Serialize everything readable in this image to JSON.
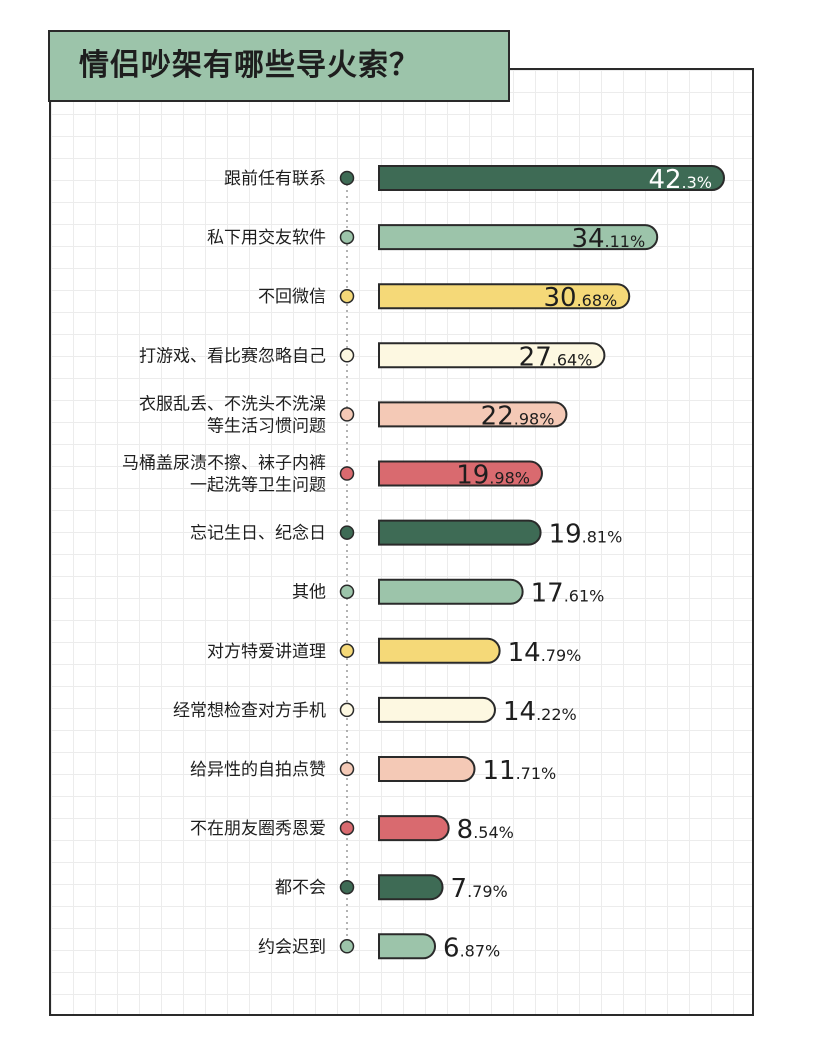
{
  "title": "情侣吵架有哪些导火索？",
  "palette": [
    "#3e6b55",
    "#9cc4aa",
    "#f5d978",
    "#fdf8e1",
    "#f4c9b6",
    "#d96a6f"
  ],
  "chart_data": {
    "type": "bar",
    "orientation": "horizontal",
    "title": "情侣吵架有哪些导火索？",
    "xlim": [
      0,
      42.3
    ],
    "grid": true,
    "categories": [
      [
        "跟前任有联系"
      ],
      [
        "私下用交友软件"
      ],
      [
        "不回微信"
      ],
      [
        "打游戏、看比赛忽略自己"
      ],
      [
        "衣服乱丢、不洗头不洗澡",
        "等生活习惯问题"
      ],
      [
        "马桶盖尿渍不擦、袜子内裤",
        "一起洗等卫生问题"
      ],
      [
        "忘记生日、纪念日"
      ],
      [
        "其他"
      ],
      [
        "对方特爱讲道理"
      ],
      [
        "经常想检查对方手机"
      ],
      [
        "给异性的自拍点赞"
      ],
      [
        "不在朋友圈秀恩爱"
      ],
      [
        "都不会"
      ],
      [
        "约会迟到"
      ]
    ],
    "values": [
      42.3,
      34.11,
      30.68,
      27.64,
      22.98,
      19.98,
      19.81,
      17.61,
      14.79,
      14.22,
      11.71,
      8.54,
      7.79,
      6.87
    ],
    "value_labels": [
      [
        "42",
        ".3%"
      ],
      [
        "34",
        ".11%"
      ],
      [
        "30",
        ".68%"
      ],
      [
        "27",
        ".64%"
      ],
      [
        "22",
        ".98%"
      ],
      [
        "19",
        ".98%"
      ],
      [
        "19",
        ".81%"
      ],
      [
        "17",
        ".61%"
      ],
      [
        "14",
        ".79%"
      ],
      [
        "14",
        ".22%"
      ],
      [
        "11",
        ".71%"
      ],
      [
        "8",
        ".54%"
      ],
      [
        "7",
        ".79%"
      ],
      [
        "6",
        ".87%"
      ]
    ]
  }
}
